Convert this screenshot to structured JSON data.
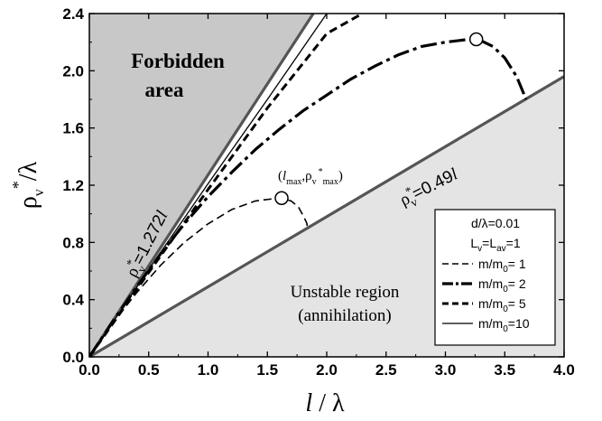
{
  "chart_data": {
    "type": "line",
    "xlabel_main": "l",
    "xlabel_tail": " / λ",
    "ylabel": {
      "rho": "ρ",
      "sub": "v",
      "sup": "*",
      "tail": "/λ"
    },
    "xlim": [
      0.0,
      4.0
    ],
    "ylim": [
      0.0,
      2.4
    ],
    "xticks": [
      0.0,
      0.5,
      1.0,
      1.5,
      2.0,
      2.5,
      3.0,
      3.5,
      4.0
    ],
    "yticks": [
      0.0,
      0.4,
      0.8,
      1.2,
      1.6,
      2.0,
      2.4
    ],
    "xtick_labels": [
      "0.0",
      "0.5",
      "1.0",
      "1.5",
      "2.0",
      "2.5",
      "3.0",
      "3.5",
      "4.0"
    ],
    "ytick_labels": [
      "0.0",
      "0.4",
      "0.8",
      "1.2",
      "1.6",
      "2.0",
      "2.4"
    ],
    "grid": false,
    "colors": {
      "forbidden_fill": "#c8c8c8",
      "unstable_fill": "#e4e4e4",
      "boundary_line": "#555555"
    },
    "regions": {
      "forbidden": {
        "line1": "Forbidden",
        "line2": "area"
      },
      "unstable": {
        "line1": "Unstable region",
        "line2": "(annihilation)"
      }
    },
    "boundary_lines": [
      {
        "slope": 1.272,
        "label": {
          "rho": "ρ",
          "sup": "*",
          "sub": "v",
          "eq": "=1.272",
          "var": "l"
        }
      },
      {
        "slope": 0.49,
        "label": {
          "rho": "ρ",
          "sup": "*",
          "sub": "v",
          "eq": "=0.49",
          "var": "l"
        }
      }
    ],
    "series": [
      {
        "name": "m/m0= 1",
        "dash": "dashed-thin",
        "x": [
          0.0,
          0.2,
          0.4,
          0.6,
          0.8,
          1.0,
          1.2,
          1.4,
          1.6,
          1.7,
          1.76,
          1.8,
          1.83,
          1.84
        ],
        "y": [
          0.0,
          0.24,
          0.45,
          0.64,
          0.8,
          0.93,
          1.03,
          1.09,
          1.11,
          1.09,
          1.05,
          0.99,
          0.94,
          0.9
        ]
      },
      {
        "name": "m/m0= 2",
        "dash": "dash-dot-thick",
        "x": [
          0.0,
          0.2,
          0.4,
          0.6,
          0.8,
          1.0,
          1.2,
          1.4,
          1.6,
          1.8,
          2.0,
          2.2,
          2.4,
          2.6,
          2.8,
          3.0,
          3.2,
          3.3,
          3.4,
          3.5,
          3.6,
          3.68
        ],
        "y": [
          0.0,
          0.25,
          0.49,
          0.72,
          0.93,
          1.12,
          1.29,
          1.45,
          1.59,
          1.72,
          1.83,
          1.94,
          2.03,
          2.11,
          2.17,
          2.2,
          2.22,
          2.21,
          2.17,
          2.09,
          1.96,
          1.8
        ]
      },
      {
        "name": "m/m0= 5",
        "dash": "dashed-thick",
        "x": [
          0.0,
          0.5,
          1.0,
          1.5,
          2.0,
          2.3
        ],
        "y": [
          0.0,
          0.59,
          1.17,
          1.74,
          2.26,
          2.4
        ]
      },
      {
        "name": "m/m0=10",
        "dash": "solid-thin",
        "x": [
          0.0,
          0.5,
          1.0,
          1.5,
          2.0
        ],
        "y": [
          0.0,
          0.61,
          1.21,
          1.8,
          2.4
        ]
      }
    ],
    "markers": [
      {
        "x": 1.62,
        "y": 1.11,
        "label": {
          "l": "l",
          "lsub": "max",
          "rho": "ρ",
          "sub": "v",
          "sup": "*",
          "sub2": "max"
        }
      },
      {
        "x": 3.26,
        "y": 2.22
      }
    ],
    "legend": {
      "position": "bottom-right",
      "header1": "d/λ=0.01",
      "header2": {
        "a": "L",
        "asub": "v",
        "eq": "=L",
        "bsub": "av",
        "tail": "=1"
      },
      "entries": [
        {
          "prefix": "m/m",
          "sub": "0",
          "suffix": "= 1",
          "dash": "dashed-thin"
        },
        {
          "prefix": "m/m",
          "sub": "0",
          "suffix": "= 2",
          "dash": "dash-dot-thick"
        },
        {
          "prefix": "m/m",
          "sub": "0",
          "suffix": "= 5",
          "dash": "dashed-thick"
        },
        {
          "prefix": "m/m",
          "sub": "0",
          "suffix": "=10",
          "dash": "solid-thin"
        }
      ]
    }
  }
}
